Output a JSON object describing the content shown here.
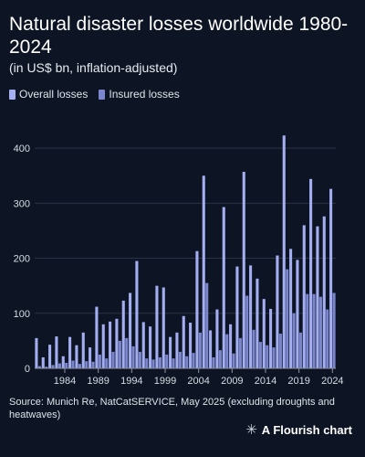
{
  "header": {
    "title": "Natural disaster losses worldwide 1980-2024",
    "subtitle": "(in US$ bn, inflation-adjusted)"
  },
  "legend": {
    "overall_label": "Overall losses",
    "insured_label": "Insured losses"
  },
  "colors": {
    "overall": "#a4aef0",
    "insured": "#7b86cc",
    "background": "#0d1525"
  },
  "footer": {
    "source": "Source: Munich Re, NatCatSERVICE, May 2025 (excluding droughts and heatwaves)",
    "brand": "A Flourish chart",
    "brand_icon": "flourish-logo-icon"
  },
  "chart_data": {
    "type": "bar",
    "xlabel": "",
    "ylabel": "",
    "ylim": [
      0,
      440
    ],
    "yticks": [
      0,
      100,
      200,
      300,
      400
    ],
    "xticks": [
      "1984",
      "1989",
      "1994",
      "1999",
      "2004",
      "2009",
      "2014",
      "2019",
      "2024"
    ],
    "categories": [
      "1980",
      "1981",
      "1982",
      "1983",
      "1984",
      "1985",
      "1986",
      "1987",
      "1988",
      "1989",
      "1990",
      "1991",
      "1992",
      "1993",
      "1994",
      "1995",
      "1996",
      "1997",
      "1998",
      "1999",
      "2000",
      "2001",
      "2002",
      "2003",
      "2004",
      "2005",
      "2006",
      "2007",
      "2008",
      "2009",
      "2010",
      "2011",
      "2012",
      "2013",
      "2014",
      "2015",
      "2016",
      "2017",
      "2018",
      "2019",
      "2020",
      "2021",
      "2022",
      "2023",
      "2024"
    ],
    "series": [
      {
        "name": "Overall losses",
        "values": [
          55,
          20,
          43,
          58,
          22,
          57,
          42,
          65,
          38,
          112,
          80,
          85,
          90,
          123,
          137,
          195,
          84,
          76,
          150,
          147,
          57,
          65,
          95,
          83,
          213,
          350,
          69,
          107,
          293,
          80,
          185,
          357,
          187,
          163,
          126,
          108,
          205,
          423,
          217,
          197,
          260,
          344,
          258,
          276,
          326
        ]
      },
      {
        "name": "Insured losses",
        "values": [
          4,
          3,
          6,
          9,
          10,
          14,
          8,
          13,
          12,
          25,
          18,
          30,
          50,
          55,
          40,
          30,
          18,
          16,
          20,
          25,
          18,
          30,
          22,
          28,
          65,
          155,
          20,
          33,
          62,
          27,
          55,
          132,
          70,
          48,
          42,
          38,
          63,
          180,
          100,
          65,
          135,
          135,
          130,
          107,
          137
        ]
      }
    ]
  }
}
